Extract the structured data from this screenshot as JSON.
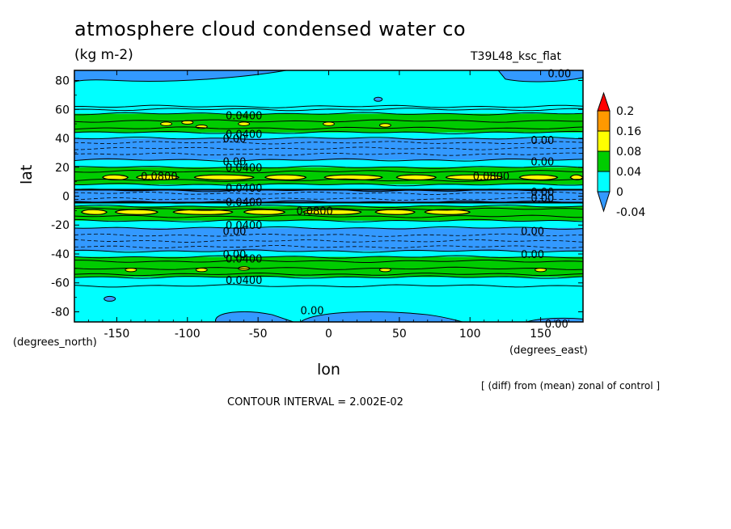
{
  "chart_data": {
    "type": "heatmap",
    "title": "atmosphere cloud condensed water co",
    "units": "(kg m-2)",
    "run_label": "T39L48_ksc_flat",
    "xlabel": "lon",
    "ylabel": "lat",
    "x_extra_label": "(degrees_east)",
    "y_extra_label": "(degrees_north)",
    "note": "[ (diff) from (mean) zonal of control ]",
    "contour_interval_text": "CONTOUR INTERVAL = 2.002E-02",
    "xlim": [
      -180,
      180
    ],
    "ylim": [
      -87,
      87
    ],
    "x_ticks": [
      -150,
      -100,
      -50,
      0,
      50,
      100,
      150
    ],
    "y_ticks": [
      -80,
      -60,
      -40,
      -20,
      0,
      20,
      40,
      60,
      80
    ],
    "x_tick_labels": [
      "-150",
      "-100",
      "-50",
      "0",
      "50",
      "100",
      "150"
    ],
    "y_tick_labels": [
      "-80",
      "-60",
      "-40",
      "-20",
      "0",
      "20",
      "40",
      "60",
      "80"
    ],
    "colorbar": {
      "levels": [
        -0.04,
        0,
        0.04,
        0.08,
        0.16,
        0.2
      ],
      "labels": [
        "-0.04",
        "0",
        "0.04",
        "0.08",
        "0.16",
        "0.2"
      ],
      "colors": [
        "#3399ff",
        "#00ffff",
        "#00cc00",
        "#ffff00",
        "#ff9900",
        "#ff0000"
      ]
    },
    "bands": [
      {
        "lat_from": 87,
        "lat_to": 62,
        "class": "light"
      },
      {
        "lat_from": 62,
        "lat_to": 57,
        "class": "light"
      },
      {
        "lat_from": 57,
        "lat_to": 44,
        "class": "green"
      },
      {
        "lat_from": 44,
        "lat_to": 40,
        "class": "light"
      },
      {
        "lat_from": 40,
        "lat_to": 25,
        "class": "blue"
      },
      {
        "lat_from": 25,
        "lat_to": 20,
        "class": "light"
      },
      {
        "lat_from": 20,
        "lat_to": 8,
        "class": "green"
      },
      {
        "lat_from": 8,
        "lat_to": 4,
        "class": "light"
      },
      {
        "lat_from": 4,
        "lat_to": -4,
        "class": "blue"
      },
      {
        "lat_from": -4,
        "lat_to": -7,
        "class": "light"
      },
      {
        "lat_from": -7,
        "lat_to": -17,
        "class": "green"
      },
      {
        "lat_from": -17,
        "lat_to": -22,
        "class": "light"
      },
      {
        "lat_from": -22,
        "lat_to": -38,
        "class": "blue"
      },
      {
        "lat_from": -38,
        "lat_to": -42,
        "class": "light"
      },
      {
        "lat_from": -42,
        "lat_to": -56,
        "class": "green"
      },
      {
        "lat_from": -56,
        "lat_to": -62,
        "class": "light"
      },
      {
        "lat_from": -62,
        "lat_to": -87,
        "class": "light"
      }
    ],
    "yellow_strips": [
      {
        "lat": 13,
        "half_height": 2,
        "lon_from": -160,
        "lon_to": 180
      },
      {
        "lat": -11,
        "half_height": 2,
        "lon_from": -175,
        "lon_to": 100
      }
    ],
    "contour_labels": [
      {
        "text": "0.00",
        "lon": 155,
        "lat": 85
      },
      {
        "text": "0.0400",
        "lon": -73,
        "lat": 56
      },
      {
        "text": "0.0400",
        "lon": -73,
        "lat": 43
      },
      {
        "text": "0.00",
        "lon": -75,
        "lat": 40
      },
      {
        "text": "0.00",
        "lon": 143,
        "lat": 39
      },
      {
        "text": "0.00",
        "lon": -75,
        "lat": 24
      },
      {
        "text": "0.0400",
        "lon": -73,
        "lat": 20
      },
      {
        "text": "0.00",
        "lon": 143,
        "lat": 24
      },
      {
        "text": "0.0800",
        "lon": -133,
        "lat": 14
      },
      {
        "text": "0.0800",
        "lon": 102,
        "lat": 14
      },
      {
        "text": "0.0400",
        "lon": -73,
        "lat": 6
      },
      {
        "text": "0.00",
        "lon": 143,
        "lat": 3
      },
      {
        "text": "0.00",
        "lon": 143,
        "lat": -1
      },
      {
        "text": "0.0400",
        "lon": -73,
        "lat": -4
      },
      {
        "text": "0.0800",
        "lon": -23,
        "lat": -10
      },
      {
        "text": "0.0400",
        "lon": -73,
        "lat": -20
      },
      {
        "text": "0.00",
        "lon": -75,
        "lat": -24
      },
      {
        "text": "0.00",
        "lon": 136,
        "lat": -24
      },
      {
        "text": "0.00",
        "lon": -75,
        "lat": -40
      },
      {
        "text": "0.0400",
        "lon": -73,
        "lat": -43
      },
      {
        "text": "0.00",
        "lon": 136,
        "lat": -40
      },
      {
        "text": "0.0400",
        "lon": -73,
        "lat": -58
      },
      {
        "text": "0.00",
        "lon": -20,
        "lat": -79
      },
      {
        "text": "0.00",
        "lon": 153,
        "lat": -88
      }
    ]
  }
}
